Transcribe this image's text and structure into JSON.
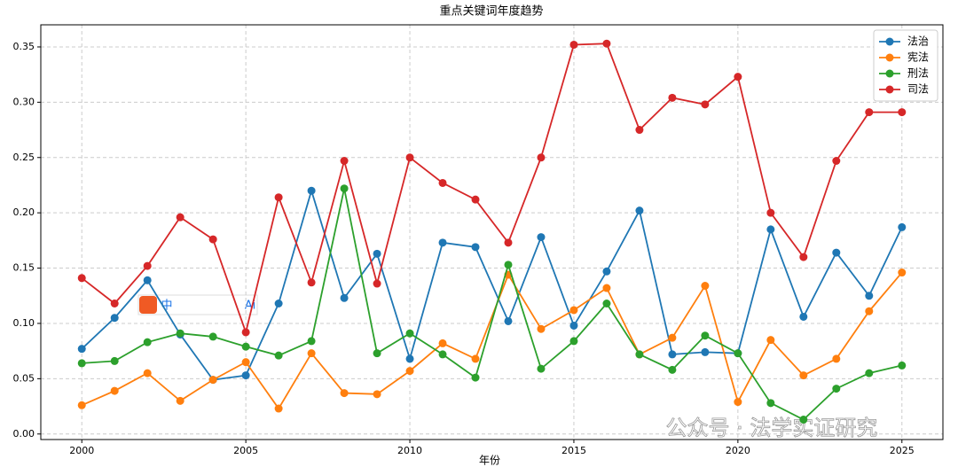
{
  "chart_data": {
    "type": "line",
    "title": "重点关键词年度趋势",
    "x_label": "年份",
    "x": [
      2000,
      2001,
      2002,
      2003,
      2004,
      2005,
      2006,
      2007,
      2008,
      2009,
      2010,
      2011,
      2012,
      2013,
      2014,
      2015,
      2016,
      2017,
      2018,
      2019,
      2020,
      2021,
      2022,
      2023,
      2024,
      2025
    ],
    "series": [
      {
        "name": "法治",
        "color": "#1f77b4",
        "values": [
          0.077,
          0.105,
          0.139,
          0.09,
          0.049,
          0.053,
          0.118,
          0.22,
          0.123,
          0.163,
          0.068,
          0.173,
          0.169,
          0.102,
          0.178,
          0.098,
          0.147,
          0.202,
          0.072,
          0.074,
          0.073,
          0.185,
          0.106,
          0.164,
          0.125,
          0.187
        ]
      },
      {
        "name": "宪法",
        "color": "#ff7f0e",
        "values": [
          0.026,
          0.039,
          0.055,
          0.03,
          0.049,
          0.065,
          0.023,
          0.073,
          0.037,
          0.036,
          0.057,
          0.082,
          0.068,
          0.144,
          0.095,
          0.112,
          0.132,
          0.072,
          0.087,
          0.134,
          0.029,
          0.085,
          0.053,
          0.068,
          0.111,
          0.146
        ]
      },
      {
        "name": "刑法",
        "color": "#2ca02c",
        "values": [
          0.064,
          0.066,
          0.083,
          0.091,
          0.088,
          0.079,
          0.071,
          0.084,
          0.222,
          0.073,
          0.091,
          0.072,
          0.051,
          0.153,
          0.059,
          0.084,
          0.118,
          0.072,
          0.058,
          0.089,
          0.073,
          0.028,
          0.013,
          0.041,
          0.055,
          0.062
        ]
      },
      {
        "name": "司法",
        "color": "#d62728",
        "values": [
          0.141,
          0.118,
          0.152,
          0.196,
          0.176,
          0.092,
          0.214,
          0.137,
          0.247,
          0.136,
          0.25,
          0.227,
          0.212,
          0.173,
          0.25,
          0.352,
          0.353,
          0.275,
          0.304,
          0.298,
          0.323,
          0.2,
          0.16,
          0.247,
          0.291,
          0.291
        ]
      }
    ],
    "xlim": [
      1998.75,
      2026.25
    ],
    "xticks": [
      2000,
      2005,
      2010,
      2015,
      2020,
      2025
    ],
    "ylim": [
      -0.005,
      0.37
    ],
    "yticks": [
      {
        "value": 0,
        "label": "0.00"
      },
      {
        "value": 0.05,
        "label": "0.05"
      },
      {
        "value": 0.1,
        "label": "0.10"
      },
      {
        "value": 0.15,
        "label": "0.15"
      },
      {
        "value": 0.2,
        "label": "0.20"
      },
      {
        "value": 0.25,
        "label": "0.25"
      },
      {
        "value": 0.3,
        "label": "0.30"
      },
      {
        "value": 0.35,
        "label": "0.35"
      }
    ],
    "grid": true,
    "legend": "upper right"
  },
  "watermark": "公众号 · 法学实证研究",
  "ime_toolbar": [
    "中",
    "Ai"
  ]
}
